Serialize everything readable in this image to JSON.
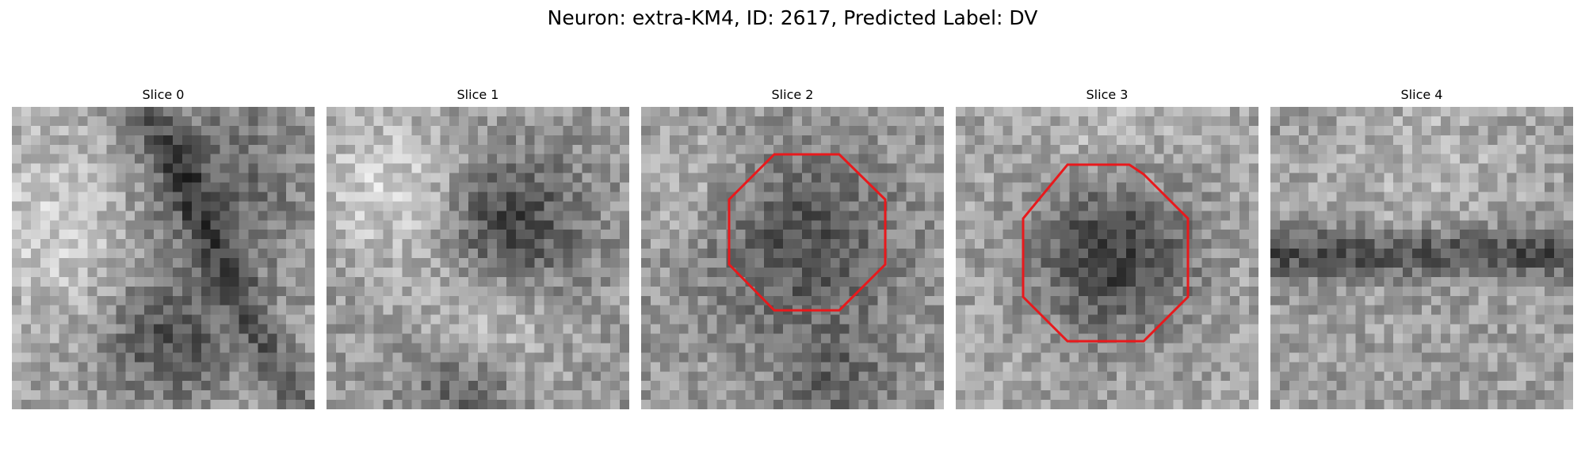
{
  "figure": {
    "title": "Neuron: extra-KM4, ID: 2617, Predicted Label: DV"
  },
  "panels": [
    {
      "title": "Slice 0",
      "roi": false
    },
    {
      "title": "Slice 1",
      "roi": false
    },
    {
      "title": "Slice 2",
      "roi": true
    },
    {
      "title": "Slice 3",
      "roi": true
    },
    {
      "title": "Slice 4",
      "roi": false
    }
  ],
  "roi_color": "#e8191c",
  "colormap": "gray"
}
